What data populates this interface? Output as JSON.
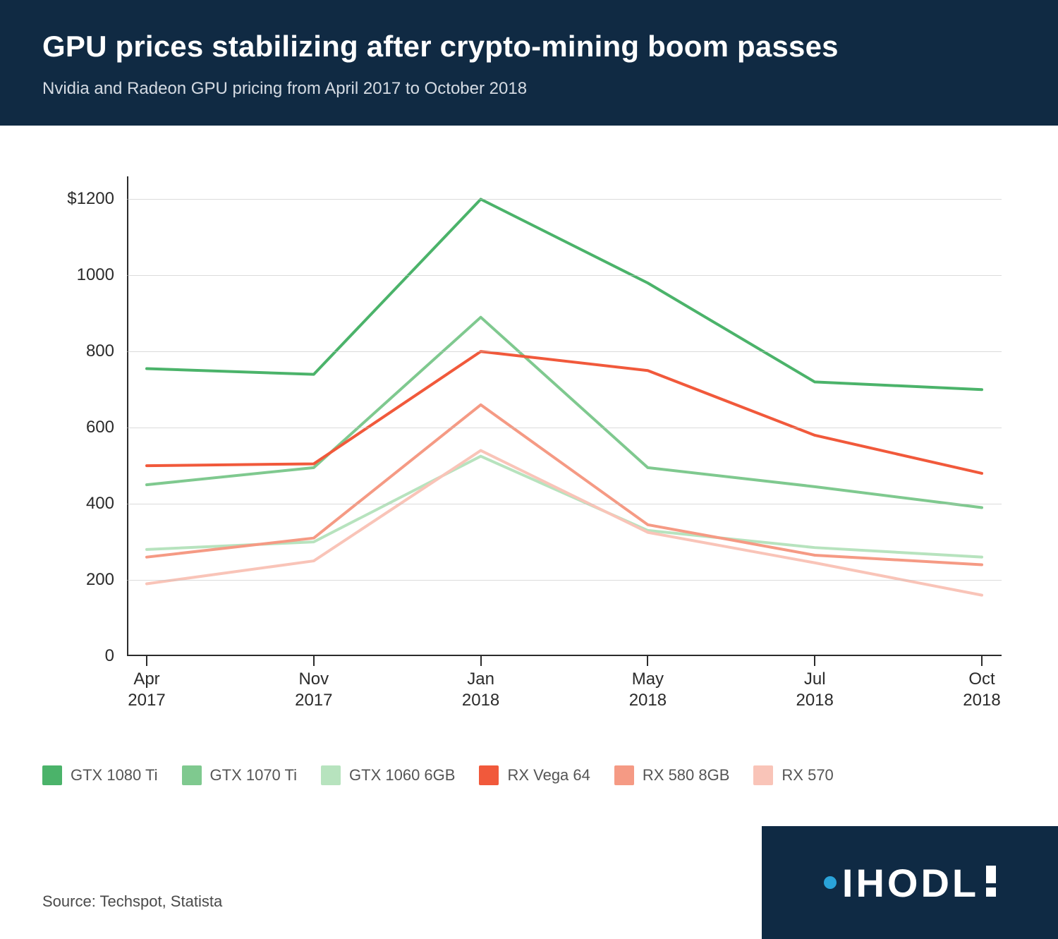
{
  "header": {
    "title": "GPU prices stabilizing after crypto-mining boom passes",
    "subtitle": "Nvidia and Radeon GPU pricing from April 2017 to October 2018",
    "bg_color": "#102a43",
    "title_fontsize": 42,
    "subtitle_fontsize": 24
  },
  "chart": {
    "type": "line",
    "background_color": "#ffffff",
    "grid_color": "#bdbdbd",
    "axis_color": "#2b2b2b",
    "line_width": 4,
    "y": {
      "min": 0,
      "max": 1260,
      "ticks": [
        0,
        200,
        400,
        600,
        800,
        1000,
        1200
      ],
      "tick_labels": [
        "0",
        "200",
        "400",
        "600",
        "800",
        "1000",
        "$1200"
      ],
      "label_fontsize": 24
    },
    "x": {
      "categories": [
        "Apr\n2017",
        "Nov\n2017",
        "Jan\n2018",
        "May\n2018",
        "Jul\n2018",
        "Oct\n2018"
      ],
      "label_fontsize": 24
    },
    "series": [
      {
        "name": "GTX 1080 Ti",
        "color": "#4bb36a",
        "values": [
          755,
          740,
          1200,
          980,
          720,
          700
        ]
      },
      {
        "name": "GTX 1070 Ti",
        "color": "#7fc98f",
        "values": [
          450,
          495,
          890,
          495,
          445,
          390
        ]
      },
      {
        "name": "GTX 1060 6GB",
        "color": "#b7e3be",
        "values": [
          280,
          300,
          525,
          330,
          285,
          260
        ]
      },
      {
        "name": "RX Vega 64",
        "color": "#f1593b",
        "values": [
          500,
          505,
          800,
          750,
          580,
          480
        ]
      },
      {
        "name": "RX 580 8GB",
        "color": "#f59a84",
        "values": [
          260,
          310,
          660,
          345,
          265,
          240
        ]
      },
      {
        "name": "RX 570",
        "color": "#f9c4b8",
        "values": [
          190,
          250,
          540,
          325,
          245,
          160
        ]
      }
    ]
  },
  "legend": {
    "fontsize": 22,
    "swatch_size": 28
  },
  "source": {
    "label": "Source: Techspot, Statista",
    "fontsize": 22,
    "color": "#4a4a4a"
  },
  "brand": {
    "text": "IHODL",
    "bg_color": "#0f2a44",
    "dot_color": "#2aa3d9",
    "text_color": "#ffffff"
  }
}
